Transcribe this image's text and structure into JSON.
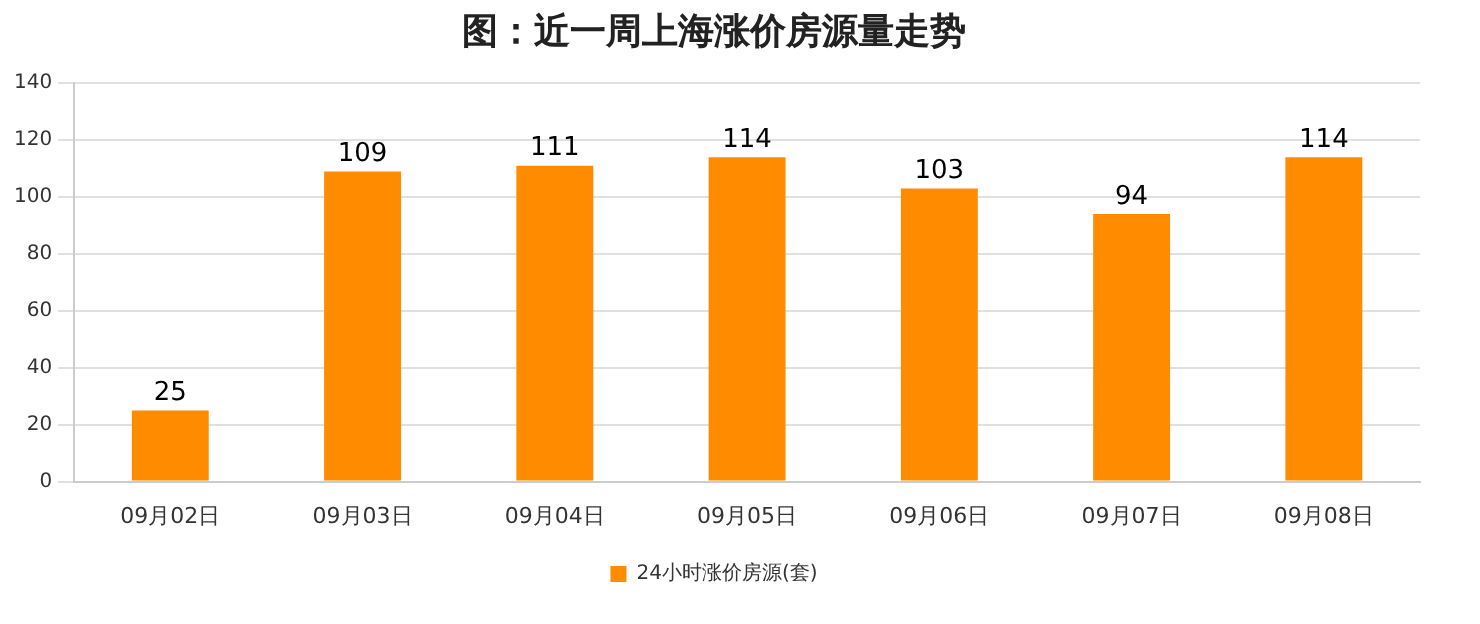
{
  "chart_data": {
    "type": "bar",
    "title": "图：近一周上海涨价房源量走势",
    "categories": [
      "09月02日",
      "09月03日",
      "09月04日",
      "09月05日",
      "09月06日",
      "09月07日",
      "09月08日"
    ],
    "series": [
      {
        "name": "24小时涨价房源(套)",
        "color": "#ff8c00",
        "values": [
          25,
          109,
          111,
          114,
          103,
          94,
          114
        ]
      }
    ],
    "ylim": [
      0,
      140
    ],
    "yticks": [
      0,
      20,
      40,
      60,
      80,
      100,
      120,
      140
    ],
    "grid": "y",
    "legend": "bottom",
    "data_labels": true
  }
}
